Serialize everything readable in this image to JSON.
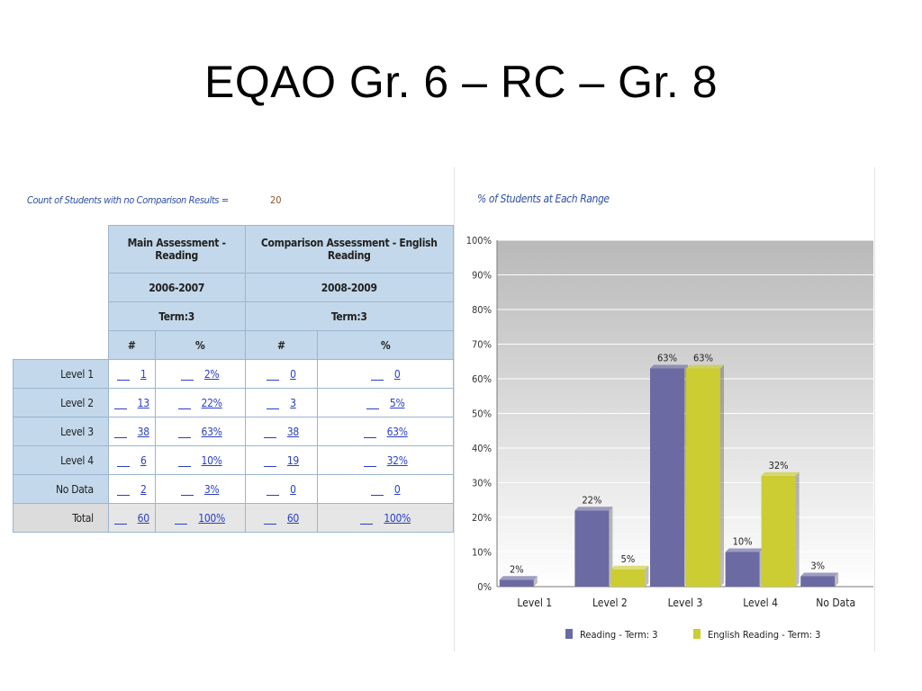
{
  "slide": {
    "title": "EQAO Gr. 6 – RC – Gr. 8"
  },
  "table": {
    "count_label": "Count of Students with no Comparison Results =",
    "count_value": "20",
    "headers": {
      "main": "Main Assessment - Reading",
      "comparison": "Comparison Assessment - English Reading",
      "main_year": "2006-2007",
      "comparison_year": "2008-2009",
      "main_term": "Term:3",
      "comparison_term": "Term:3",
      "count_col": "#",
      "pct_col": "%"
    },
    "rows": [
      {
        "label": "Level 1",
        "main_n": "1",
        "main_pct": "2%",
        "comp_n": "0",
        "comp_pct": "0"
      },
      {
        "label": "Level 2",
        "main_n": "13",
        "main_pct": "22%",
        "comp_n": "3",
        "comp_pct": "5%"
      },
      {
        "label": "Level 3",
        "main_n": "38",
        "main_pct": "63%",
        "comp_n": "38",
        "comp_pct": "63%"
      },
      {
        "label": "Level 4",
        "main_n": "6",
        "main_pct": "10%",
        "comp_n": "19",
        "comp_pct": "32%"
      },
      {
        "label": "No Data",
        "main_n": "2",
        "main_pct": "3%",
        "comp_n": "0",
        "comp_pct": "0"
      },
      {
        "label": "Total",
        "main_n": "60",
        "main_pct": "100%",
        "comp_n": "60",
        "comp_pct": "100%"
      }
    ]
  },
  "chart_data": {
    "type": "bar",
    "title": "% of Students at Each Range",
    "categories": [
      "Level 1",
      "Level 2",
      "Level 3",
      "Level 4",
      "No Data"
    ],
    "series": [
      {
        "name": "Reading - Term: 3",
        "values": [
          2,
          22,
          63,
          10,
          3
        ],
        "labels": [
          "2%",
          "22%",
          "63%",
          "10%",
          "3%"
        ],
        "color": "#6b6aa3"
      },
      {
        "name": "English Reading - Term: 3",
        "values": [
          0,
          5,
          63,
          32,
          0
        ],
        "labels": [
          "",
          "5%",
          "63%",
          "32%",
          ""
        ],
        "color": "#cccc33"
      }
    ],
    "ylim": [
      0,
      100
    ],
    "yticks": [
      "0%",
      "10%",
      "20%",
      "30%",
      "40%",
      "50%",
      "60%",
      "70%",
      "80%",
      "90%",
      "100%"
    ],
    "grid": true,
    "legend": "bottom"
  }
}
